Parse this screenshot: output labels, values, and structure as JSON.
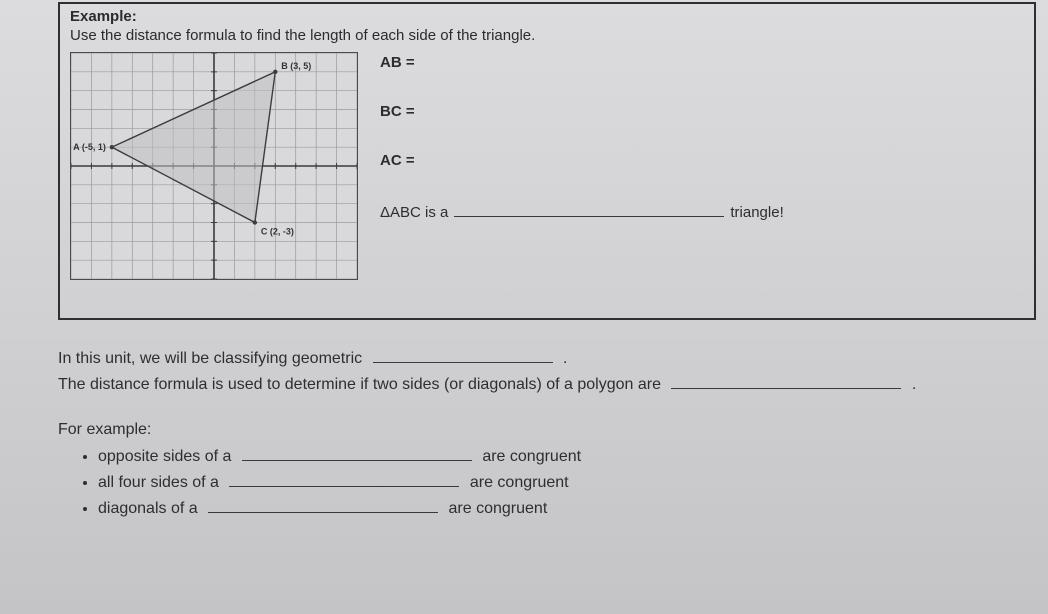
{
  "header": {
    "title": "Example:",
    "instruction": "Use the distance formula to find the length of each side of the triangle."
  },
  "graph": {
    "background_color": "#d9d9db",
    "grid_color": "#9a9a9c",
    "axis_color": "#3a3a3c",
    "triangle_fill": "#bfbfc2",
    "triangle_stroke": "#3c3c3e",
    "xlim": [
      -7,
      7
    ],
    "ylim": [
      -6,
      6
    ],
    "xtick_step": 1,
    "ytick_step": 1,
    "points": {
      "A": {
        "x": -5,
        "y": 1,
        "label": "A (-5, 1)"
      },
      "B": {
        "x": 3,
        "y": 5,
        "label": "B (3, 5)"
      },
      "C": {
        "x": 2,
        "y": -3,
        "label": "C (2, -3)"
      }
    }
  },
  "equations": {
    "ab": "AB =",
    "bc": "BC =",
    "ac": "AC =",
    "triangle_prefix": "ΔABC is a",
    "triangle_suffix": "triangle!"
  },
  "unit_text": {
    "line1_a": "In this unit, we will be classifying geometric",
    "line1_b": ".",
    "line2_a": "The distance formula is used to determine if two sides (or diagonals) of a polygon are",
    "line2_b": "."
  },
  "for_example": {
    "heading": "For example:",
    "items": [
      {
        "prefix": "opposite sides of a",
        "suffix": "are congruent"
      },
      {
        "prefix": "all four sides of a",
        "suffix": "are congruent"
      },
      {
        "prefix": "diagonals of a",
        "suffix": "are congruent"
      }
    ]
  },
  "colors": {
    "text": "#2d2d2f",
    "border": "#2f2f31",
    "page_bg_top": "#dcdcde",
    "page_bg_bottom": "#c4c4c7"
  },
  "typography": {
    "body_fontsize_pt": 12,
    "header_bold_weight": 700
  }
}
